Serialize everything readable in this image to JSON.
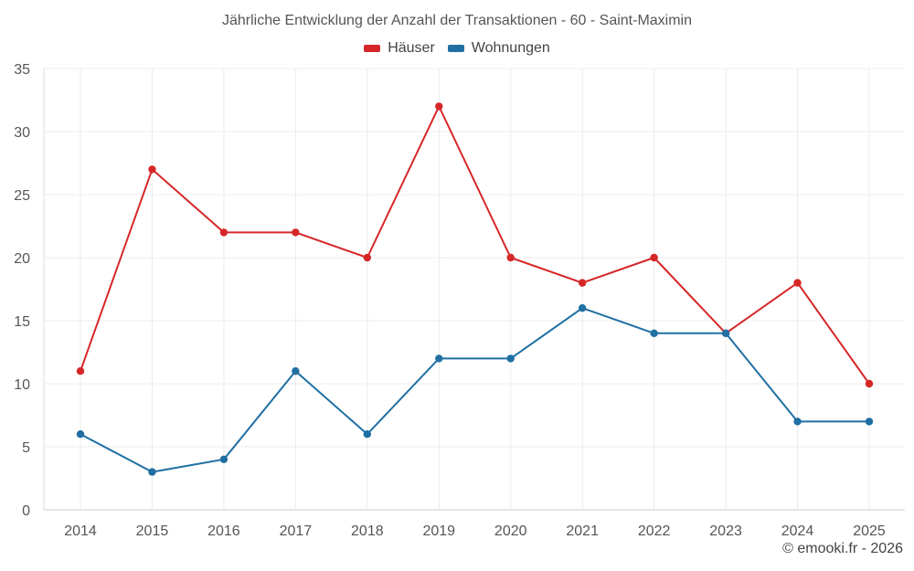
{
  "chart_data": {
    "type": "line",
    "title": "Jährliche Entwicklung der Anzahl der Transaktionen - 60 - Saint-Maximin",
    "categories": [
      "2014",
      "2015",
      "2016",
      "2017",
      "2018",
      "2019",
      "2020",
      "2021",
      "2022",
      "2023",
      "2024",
      "2025"
    ],
    "series": [
      {
        "name": "Häuser",
        "color": "#d62728",
        "values": [
          11,
          27,
          22,
          22,
          20,
          32,
          20,
          18,
          20,
          14,
          18,
          10
        ]
      },
      {
        "name": "Wohnungen",
        "color": "#1f6fa3",
        "values": [
          6,
          3,
          4,
          11,
          6,
          12,
          12,
          16,
          14,
          14,
          7,
          7
        ]
      }
    ],
    "ylim": [
      0,
      35
    ],
    "yticks": [
      0,
      5,
      10,
      15,
      20,
      25,
      30,
      35
    ],
    "xlabel": "",
    "ylabel": "",
    "grid": true,
    "legend_position": "top-center"
  },
  "footer": {
    "copyright": "© emooki.fr - 2026"
  }
}
